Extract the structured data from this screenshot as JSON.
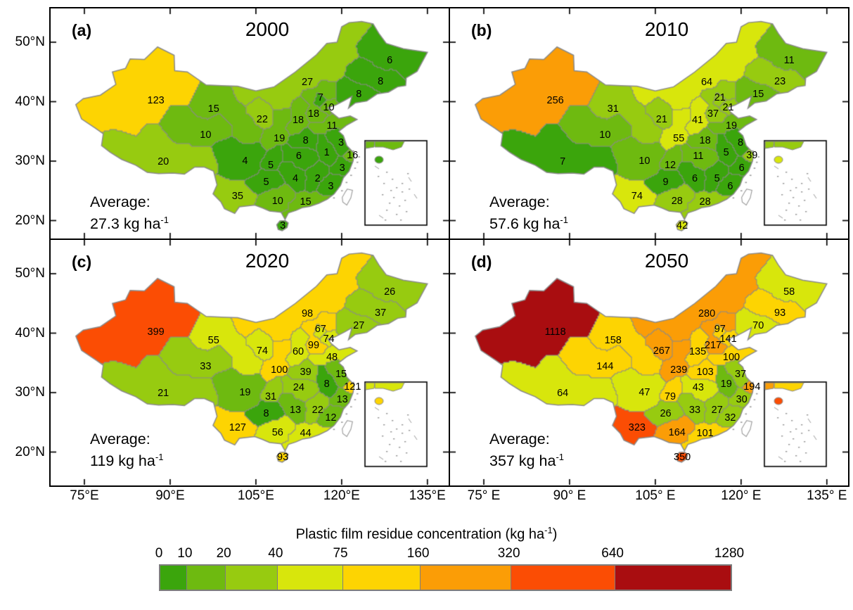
{
  "panels": [
    {
      "letter": "(a)",
      "year": "2000",
      "avg_label": "Average:",
      "avg_value": "27.3 kg ha",
      "avg_exp": "-1"
    },
    {
      "letter": "(b)",
      "year": "2010",
      "avg_label": "Average:",
      "avg_value": "57.6 kg ha",
      "avg_exp": "-1"
    },
    {
      "letter": "(c)",
      "year": "2020",
      "avg_label": "Average:",
      "avg_value": "119 kg ha",
      "avg_exp": "-1"
    },
    {
      "letter": "(d)",
      "year": "2050",
      "avg_label": "Average:",
      "avg_value": "357 kg ha",
      "avg_exp": "-1"
    }
  ],
  "axes": {
    "y_tick_labels": [
      "50°N",
      "40°N",
      "30°N",
      "20°N"
    ],
    "x_tick_labels_left": [
      "75°E",
      "90°E",
      "105°E",
      "120°E",
      "135°E"
    ],
    "x_tick_labels_right": [
      "75° E",
      "90° E",
      "105° E",
      "120° E",
      "135° E"
    ]
  },
  "colorbar": {
    "title_prefix": "Plastic film residue concentration (kg ha",
    "title_exp": "-1",
    "title_suffix": ")",
    "tick_labels": [
      "0",
      "10",
      "20",
      "40",
      "75",
      "160",
      "320",
      "640",
      "1280"
    ],
    "colors": [
      "#3ba50c",
      "#6eba10",
      "#97cb10",
      "#d8e60c",
      "#fdd402",
      "#fb9d06",
      "#fb4d04",
      "#a90d10"
    ]
  },
  "chart_data": {
    "type": "choropleth",
    "map": "China provinces (4 panels)",
    "unit": "kg ha-1",
    "years": [
      "2000",
      "2010",
      "2020",
      "2050"
    ],
    "averages": [
      27.3,
      57.6,
      119,
      357
    ],
    "class_breaks": [
      0,
      10,
      20,
      40,
      75,
      160,
      320,
      640,
      1280
    ],
    "class_colors": [
      "#3ba50c",
      "#6eba10",
      "#97cb10",
      "#d8e60c",
      "#fdd402",
      "#fb9d06",
      "#fb4d04",
      "#a90d10"
    ],
    "regions": [
      {
        "name": "Xinjiang",
        "values": [
          123,
          256,
          399,
          1118
        ]
      },
      {
        "name": "Tibet",
        "values": [
          20,
          7,
          21,
          64
        ]
      },
      {
        "name": "Qinghai",
        "values": [
          10,
          10,
          33,
          144
        ]
      },
      {
        "name": "Gansu",
        "values": [
          15,
          31,
          55,
          158
        ]
      },
      {
        "name": "Ningxia",
        "values": [
          22,
          21,
          74,
          267
        ]
      },
      {
        "name": "Inner Mongolia",
        "values": [
          27,
          64,
          98,
          280
        ]
      },
      {
        "name": "Shaanxi",
        "values": [
          19,
          55,
          100,
          239
        ]
      },
      {
        "name": "Shanxi",
        "values": [
          18,
          41,
          60,
          135
        ]
      },
      {
        "name": "Hebei",
        "values": [
          18,
          37,
          99,
          217
        ]
      },
      {
        "name": "Beijing",
        "values": [
          7,
          21,
          67,
          97
        ]
      },
      {
        "name": "Tianjin",
        "values": [
          10,
          21,
          74,
          141
        ]
      },
      {
        "name": "Shandong",
        "values": [
          11,
          19,
          48,
          100
        ]
      },
      {
        "name": "Henan",
        "values": [
          8,
          18,
          39,
          103
        ]
      },
      {
        "name": "Heilongjiang",
        "values": [
          6,
          11,
          26,
          58
        ]
      },
      {
        "name": "Jilin",
        "values": [
          8,
          23,
          37,
          93
        ]
      },
      {
        "name": "Liaoning",
        "values": [
          8,
          15,
          27,
          70
        ]
      },
      {
        "name": "Jiangsu",
        "values": [
          3,
          8,
          15,
          37
        ]
      },
      {
        "name": "Anhui",
        "values": [
          1,
          5,
          8,
          19
        ]
      },
      {
        "name": "Shanghai",
        "values": [
          16,
          39,
          121,
          194
        ]
      },
      {
        "name": "Zhejiang",
        "values": [
          3,
          6,
          13,
          30
        ]
      },
      {
        "name": "Hubei",
        "values": [
          6,
          11,
          24,
          43
        ]
      },
      {
        "name": "Chongqing",
        "values": [
          5,
          12,
          31,
          79
        ]
      },
      {
        "name": "Sichuan",
        "values": [
          4,
          10,
          19,
          47
        ]
      },
      {
        "name": "Guizhou",
        "values": [
          5,
          9,
          8,
          26
        ]
      },
      {
        "name": "Hunan",
        "values": [
          4,
          6,
          13,
          33
        ]
      },
      {
        "name": "Jiangxi",
        "values": [
          2,
          5,
          22,
          27
        ]
      },
      {
        "name": "Fujian",
        "values": [
          3,
          6,
          12,
          32
        ]
      },
      {
        "name": "Yunnan",
        "values": [
          35,
          74,
          127,
          323
        ]
      },
      {
        "name": "Guangxi",
        "values": [
          10,
          28,
          56,
          164
        ]
      },
      {
        "name": "Guangdong",
        "values": [
          15,
          28,
          44,
          101
        ]
      },
      {
        "name": "Hainan",
        "values": [
          3,
          42,
          93,
          350
        ]
      }
    ]
  }
}
